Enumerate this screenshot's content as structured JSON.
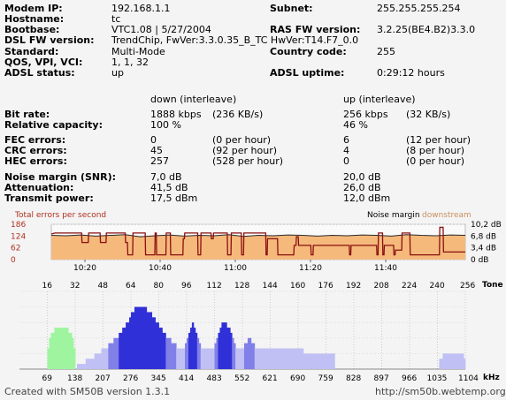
{
  "info": {
    "rows_left": [
      {
        "label": "Modem IP:",
        "value": "192.168.1.1"
      },
      {
        "label": "Hostname:",
        "value": "tc"
      },
      {
        "label": "Bootbase:",
        "value": "VTC1.08 | 5/27/2004"
      },
      {
        "label": "DSL FW version:",
        "value": "TrendChip, FwVer:3.3.0.35_B_TC HwVer:T14.F7_0.0"
      },
      {
        "label": "Standard:",
        "value": "Multi-Mode"
      },
      {
        "label": "QOS, VPI, VCI:",
        "value": "1, 1, 32"
      },
      {
        "label": "ADSL status:",
        "value": "up"
      }
    ],
    "rows_right": [
      {
        "label": "Subnet:",
        "value": "255.255.255.254"
      },
      {
        "label": "RAS FW version:",
        "value": "3.2.25(BE4.B2)3.3.0"
      },
      {
        "label": "Country code:",
        "value": "255"
      },
      {
        "label": "ADSL uptime:",
        "value": "0:29:12 hours"
      }
    ]
  },
  "stats": {
    "header_down": "down (interleave)",
    "header_up": "up (interleave)",
    "groups": [
      [
        {
          "label": "Bit rate:",
          "down": "1888 kbps",
          "down_extra": "(236 KB/s)",
          "up": "256 kbps",
          "up_extra": "(32 KB/s)"
        },
        {
          "label": "Relative capacity:",
          "down": "100 %",
          "down_extra": "",
          "up": "46 %",
          "up_extra": ""
        }
      ],
      [
        {
          "label": "FEC errors:",
          "down": "0",
          "down_extra": "(0 per hour)",
          "up": "6",
          "up_extra": "(12 per hour)"
        },
        {
          "label": "CRC errors:",
          "down": "45",
          "down_extra": "(92 per hour)",
          "up": "4",
          "up_extra": "(8 per hour)"
        },
        {
          "label": "HEC errors:",
          "down": "257",
          "down_extra": "(528 per hour)",
          "up": "0",
          "up_extra": "(0 per hour)"
        }
      ],
      [
        {
          "label": "Noise margin (SNR):",
          "down": "7,0 dB",
          "down_extra": "",
          "up": "20,0 dB",
          "up_extra": ""
        },
        {
          "label": "Attenuation:",
          "down": "41,5 dB",
          "down_extra": "",
          "up": "26,0 dB",
          "up_extra": ""
        },
        {
          "label": "Transmit power:",
          "down": "17,5 dBm",
          "down_extra": "",
          "up": "12,0 dBm",
          "up_extra": ""
        }
      ]
    ]
  },
  "chart_data": [
    {
      "type": "line",
      "title_left": "Total errors per second",
      "title_right_1": "Noise margin",
      "title_right_2": "downstream",
      "y_left_ticks": [
        "186",
        "124",
        "62",
        "0"
      ],
      "y_right_ticks": [
        "10,2 dB",
        "6,8 dB",
        "3,4 dB",
        "0 dB"
      ],
      "x_ticks": [
        "10:20",
        "10:40",
        "11:00",
        "11:20",
        "11:40"
      ],
      "ylim_left": [
        0,
        186
      ],
      "ylim_right": [
        0,
        10.2
      ],
      "colors": {
        "errors": "#8a1010",
        "noise_fill": "#f5b97c",
        "noise_line": "#2a2a2a"
      },
      "series": [
        {
          "name": "Total errors per second",
          "x": [
            0,
            0.5,
            1.5,
            4.1,
            4.15,
            5.0,
            5.05,
            6.6,
            6.65,
            7.4,
            7.45,
            10.0,
            10.05,
            10.3,
            10.35,
            11.0,
            11.05,
            12.7,
            12.75,
            14.0,
            14.05,
            14.2,
            14.25,
            15.5,
            15.55,
            16.1,
            16.15,
            17.8,
            17.85,
            18.0,
            18.05,
            19.8,
            19.85,
            20.2,
            20.25,
            21.6,
            21.65,
            21.9,
            21.95,
            23.8,
            23.85,
            24.3,
            24.35,
            25.7,
            25.75,
            26.0,
            26.05,
            29.0,
            29.05,
            29.2,
            29.25,
            30.6,
            30.65,
            32.8,
            32.85,
            33.1,
            33.15,
            33.4,
            33.45,
            35.1,
            35.15,
            35.4,
            35.45,
            40.3,
            40.35,
            40.5,
            40.55,
            44.0,
            44.05,
            44.2,
            44.25,
            44.8,
            44.85,
            45.0,
            45.05,
            46.3,
            46.35,
            46.5,
            46.55,
            47.4,
            47.45,
            48.5,
            48.55,
            52.5,
            52.55,
            53.0,
            53.05,
            55.9,
            56.0
          ],
          "values": [
            135,
            140,
            140,
            140,
            90,
            90,
            140,
            140,
            90,
            90,
            140,
            140,
            90,
            90,
            25,
            25,
            140,
            140,
            25,
            25,
            140,
            140,
            25,
            25,
            140,
            140,
            25,
            25,
            110,
            110,
            140,
            140,
            25,
            25,
            140,
            140,
            110,
            110,
            140,
            140,
            25,
            25,
            140,
            140,
            25,
            25,
            140,
            140,
            25,
            25,
            110,
            110,
            25,
            25,
            75,
            75,
            120,
            120,
            75,
            75,
            25,
            25,
            75,
            75,
            25,
            25,
            75,
            75,
            25,
            25,
            140,
            140,
            25,
            25,
            75,
            75,
            25,
            25,
            50,
            50,
            140,
            140,
            25,
            25,
            170,
            170,
            40,
            40,
            40
          ]
        },
        {
          "name": "Noise margin downstream",
          "x": [
            0,
            2,
            4,
            6,
            8,
            10,
            12,
            14,
            16,
            18,
            20,
            22,
            24,
            26,
            28,
            30,
            32,
            34,
            36,
            38,
            40,
            42,
            44,
            46,
            48,
            50,
            52,
            54,
            56
          ],
          "values": [
            7.0,
            6.9,
            7.1,
            6.8,
            7.0,
            7.2,
            6.6,
            6.9,
            7.1,
            6.8,
            7.0,
            6.9,
            7.2,
            6.7,
            7.0,
            6.9,
            7.1,
            7.0,
            6.8,
            7.0,
            6.9,
            7.1,
            7.0,
            6.8,
            7.2,
            7.0,
            6.9,
            7.1,
            7.0
          ]
        }
      ]
    },
    {
      "type": "bar",
      "x_label": "Tone",
      "x2_label": "kHz",
      "tone_ticks": [
        "16",
        "32",
        "48",
        "64",
        "80",
        "96",
        "112",
        "128",
        "144",
        "160",
        "176",
        "192",
        "208",
        "224",
        "240",
        "256"
      ],
      "khz_ticks": [
        "69",
        "138",
        "207",
        "276",
        "345",
        "414",
        "483",
        "552",
        "621",
        "690",
        "759",
        "828",
        "897",
        "966",
        "1035",
        "1104"
      ],
      "ylim": [
        0,
        15
      ],
      "colors": {
        "upstream": "#9ff59f",
        "downstream_strong": "#3030d8",
        "downstream_mid": "#8080e8",
        "downstream_low": "#c0c0f4"
      },
      "series": [
        {
          "name": "upstream",
          "tones": [
            15,
            16,
            17,
            18,
            19,
            20,
            21,
            22,
            23,
            24,
            25,
            26,
            27,
            28,
            29,
            30,
            31
          ],
          "bits": [
            0,
            4,
            6,
            7,
            7,
            8,
            8,
            8,
            8,
            8,
            8,
            8,
            8,
            7,
            7,
            6,
            4
          ]
        },
        {
          "name": "downstream",
          "tones": [
            33,
            34,
            35,
            36,
            37,
            38,
            39,
            40,
            41,
            42,
            43,
            44,
            45,
            46,
            47,
            48,
            49,
            50,
            51,
            52,
            53,
            54,
            55,
            56,
            57,
            58,
            59,
            60,
            61,
            62,
            63,
            64,
            65,
            66,
            67,
            68,
            69,
            70,
            71,
            72,
            73,
            74,
            75,
            76,
            77,
            78,
            79,
            80,
            81,
            82,
            83,
            84,
            85,
            86,
            87,
            88,
            89,
            90,
            91,
            92,
            93,
            94,
            95,
            96,
            97,
            98,
            99,
            100,
            101,
            102,
            103,
            104,
            105,
            106,
            107,
            108,
            109,
            110,
            111,
            112,
            113,
            114,
            115,
            116,
            117,
            118,
            119,
            120,
            121,
            122,
            123,
            124,
            125,
            126,
            127,
            128,
            129,
            130,
            131,
            132,
            133,
            134,
            135,
            136,
            137,
            138,
            139,
            140,
            141,
            142,
            143,
            144,
            145,
            146,
            147,
            148,
            149,
            150,
            151,
            152,
            153,
            154,
            155,
            156,
            157,
            158,
            159,
            160,
            161,
            162,
            163,
            164,
            165,
            166,
            167,
            168,
            169,
            170,
            171,
            172,
            173,
            174,
            175,
            176,
            177,
            178,
            179,
            180,
            241,
            242,
            243,
            244,
            245,
            246,
            247,
            248,
            249,
            250,
            251,
            252,
            253,
            254,
            255
          ],
          "bits": [
            1,
            1,
            1,
            1,
            1,
            2,
            2,
            2,
            2,
            2,
            3,
            3,
            3,
            3,
            4,
            4,
            4,
            4,
            5,
            5,
            5,
            6,
            6,
            6,
            7,
            7,
            8,
            8,
            9,
            9,
            10,
            11,
            11,
            12,
            12,
            12,
            12,
            12,
            12,
            12,
            11,
            11,
            11,
            10,
            10,
            9,
            9,
            8,
            8,
            7,
            7,
            6,
            6,
            6,
            5,
            5,
            5,
            4,
            4,
            4,
            4,
            4,
            5,
            6,
            7,
            8,
            9,
            8,
            7,
            6,
            5,
            4,
            4,
            4,
            4,
            4,
            4,
            4,
            4,
            5,
            6,
            7,
            8,
            9,
            9,
            9,
            8,
            8,
            7,
            6,
            5,
            4,
            4,
            4,
            4,
            4,
            5,
            5,
            6,
            6,
            5,
            5,
            4,
            4,
            4,
            4,
            4,
            4,
            4,
            4,
            4,
            4,
            4,
            4,
            4,
            4,
            4,
            4,
            4,
            4,
            4,
            4,
            4,
            4,
            4,
            4,
            4,
            4,
            4,
            4,
            3,
            3,
            3,
            3,
            3,
            3,
            3,
            3,
            3,
            3,
            3,
            3,
            3,
            3,
            3,
            3,
            3,
            3,
            2,
            2,
            3,
            3,
            3,
            3,
            3,
            3,
            3,
            3,
            3,
            3,
            3,
            3,
            2
          ]
        }
      ]
    }
  ],
  "footer": {
    "left": "Created with SM50B version 1.3.1",
    "right": "http://sm50b.webtemp.org"
  }
}
